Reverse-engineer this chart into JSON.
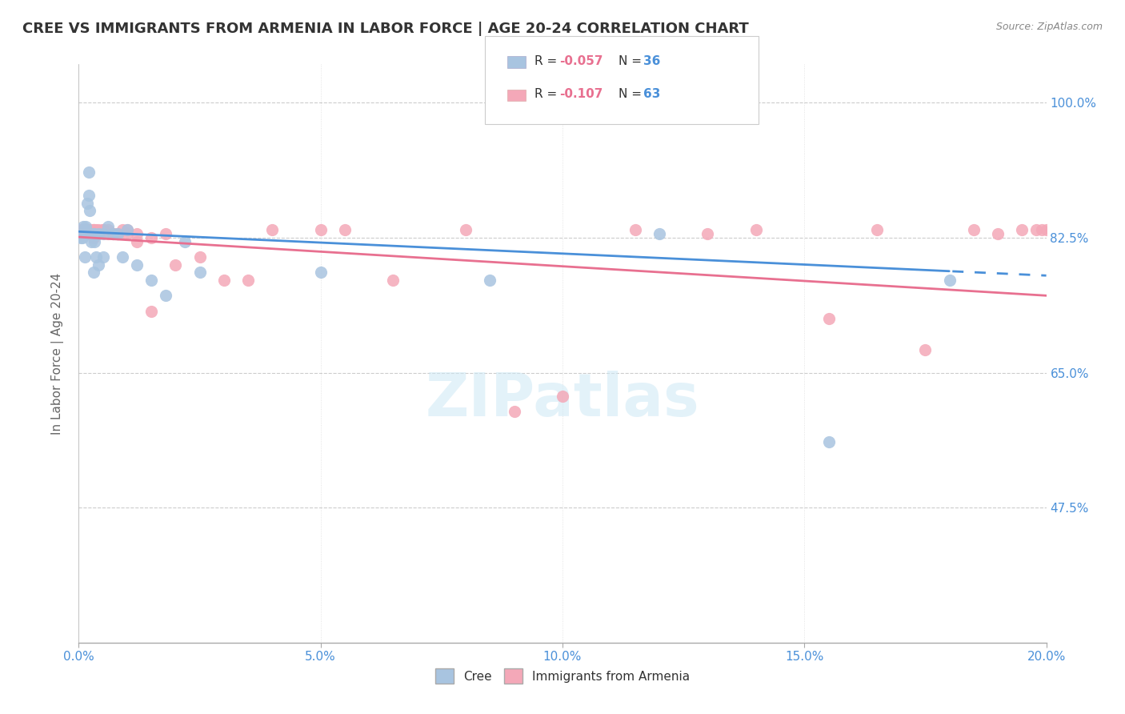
{
  "title": "CREE VS IMMIGRANTS FROM ARMENIA IN LABOR FORCE | AGE 20-24 CORRELATION CHART",
  "source": "Source: ZipAtlas.com",
  "ylabel": "In Labor Force | Age 20-24",
  "yticks": [
    "100.0%",
    "82.5%",
    "65.0%",
    "47.5%"
  ],
  "ytick_vals": [
    1.0,
    0.825,
    0.65,
    0.475
  ],
  "watermark": "ZIPatlas",
  "legend_r1": "-0.057",
  "legend_n1": "36",
  "legend_r2": "-0.107",
  "legend_n2": "63",
  "blue_color": "#a8c4e0",
  "pink_color": "#f4a8b8",
  "blue_line_color": "#4a90d9",
  "pink_line_color": "#e87090",
  "title_color": "#333333",
  "axis_label_color": "#4a90d9",
  "legend_r_color": "#e87090",
  "legend_n_color": "#4a90d9",
  "xmin": 0.0,
  "xmax": 0.2,
  "ymin": 0.3,
  "ymax": 1.05,
  "cree_x": [
    0.0005,
    0.0008,
    0.001,
    0.0012,
    0.0012,
    0.0015,
    0.0015,
    0.0018,
    0.002,
    0.002,
    0.0022,
    0.0025,
    0.003,
    0.003,
    0.003,
    0.0032,
    0.0035,
    0.004,
    0.004,
    0.005,
    0.005,
    0.006,
    0.007,
    0.008,
    0.009,
    0.01,
    0.012,
    0.015,
    0.018,
    0.022,
    0.025,
    0.05,
    0.085,
    0.12,
    0.155,
    0.18
  ],
  "cree_y": [
    0.825,
    0.825,
    0.84,
    0.835,
    0.8,
    0.84,
    0.835,
    0.87,
    0.88,
    0.91,
    0.86,
    0.82,
    0.78,
    0.83,
    0.83,
    0.82,
    0.8,
    0.83,
    0.79,
    0.83,
    0.8,
    0.84,
    0.83,
    0.83,
    0.8,
    0.835,
    0.79,
    0.77,
    0.75,
    0.82,
    0.78,
    0.78,
    0.77,
    0.83,
    0.56,
    0.77
  ],
  "armenia_x": [
    0.0005,
    0.0005,
    0.001,
    0.001,
    0.0012,
    0.0012,
    0.0015,
    0.0015,
    0.0018,
    0.002,
    0.002,
    0.0022,
    0.0025,
    0.003,
    0.003,
    0.003,
    0.003,
    0.0032,
    0.0035,
    0.004,
    0.004,
    0.005,
    0.005,
    0.005,
    0.006,
    0.006,
    0.007,
    0.007,
    0.008,
    0.008,
    0.009,
    0.01,
    0.01,
    0.012,
    0.012,
    0.015,
    0.015,
    0.018,
    0.02,
    0.025,
    0.03,
    0.035,
    0.04,
    0.05,
    0.055,
    0.065,
    0.08,
    0.09,
    0.1,
    0.115,
    0.13,
    0.14,
    0.155,
    0.165,
    0.175,
    0.185,
    0.19,
    0.195,
    0.198,
    0.199,
    0.2,
    0.201,
    0.202
  ],
  "armenia_y": [
    0.835,
    0.83,
    0.835,
    0.835,
    0.835,
    0.83,
    0.835,
    0.835,
    0.835,
    0.835,
    0.83,
    0.835,
    0.835,
    0.835,
    0.835,
    0.835,
    0.825,
    0.83,
    0.835,
    0.83,
    0.835,
    0.835,
    0.835,
    0.835,
    0.835,
    0.83,
    0.83,
    0.83,
    0.83,
    0.83,
    0.835,
    0.83,
    0.835,
    0.82,
    0.83,
    0.825,
    0.73,
    0.83,
    0.79,
    0.8,
    0.77,
    0.77,
    0.835,
    0.835,
    0.835,
    0.77,
    0.835,
    0.6,
    0.62,
    0.835,
    0.83,
    0.835,
    0.72,
    0.835,
    0.68,
    0.835,
    0.83,
    0.835,
    0.835,
    0.835,
    0.835,
    0.835,
    0.835
  ],
  "cree_intercept": 0.833,
  "cree_slope": -0.285,
  "armenia_intercept": 0.826,
  "armenia_slope": -0.38
}
